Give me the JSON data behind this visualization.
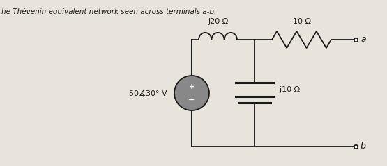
{
  "title": "he Thévenin equivalent network seen across terminals a-b.",
  "bg_color": "#e8e4dc",
  "line_color": "#1a1a1a",
  "text_color": "#1a1a1a",
  "source_label": "50∡30° V",
  "inductor_label": "j20 Ω",
  "resistor_label": "10 Ω",
  "capacitor_label": "-j10 Ω",
  "terminal_a": "a",
  "terminal_b": "b",
  "vs_circle_color": "#888888",
  "figsize": [
    5.55,
    2.39
  ],
  "dpi": 100
}
